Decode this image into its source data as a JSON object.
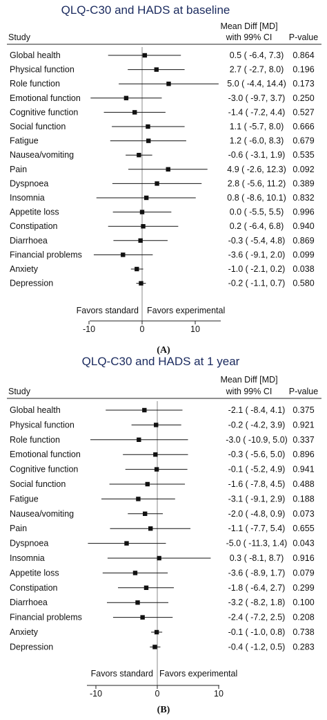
{
  "chart_data": [
    {
      "type": "forest",
      "title": "QLQ-C30 and HADS at baseline",
      "caption": "(A)",
      "header": {
        "study": "Study",
        "effect_line1": "Mean Diff [MD]",
        "effect_line2": "with 99% CI",
        "pvalue": "P-value"
      },
      "favors_left": "Favors standard",
      "favors_right": "Favors experimental",
      "xlim": [
        -10,
        10
      ],
      "xticks": [
        "-10",
        "0",
        "10"
      ],
      "rows": [
        {
          "study": "Global health",
          "md": 0.5,
          "lo": -6.4,
          "hi": 7.3,
          "ci_text": "0.5 ( -6.4,   7.3)",
          "p": "0.864"
        },
        {
          "study": "Physical function",
          "md": 2.7,
          "lo": -2.7,
          "hi": 8.0,
          "ci_text": "2.7 ( -2.7,   8.0)",
          "p": "0.196"
        },
        {
          "study": "Role function",
          "md": 5.0,
          "lo": -4.4,
          "hi": 14.4,
          "ci_text": "5.0 ( -4.4, 14.4)",
          "p": "0.173"
        },
        {
          "study": "Emotional function",
          "md": -3.0,
          "lo": -9.7,
          "hi": 3.7,
          "ci_text": "-3.0 ( -9.7,   3.7)",
          "p": "0.250"
        },
        {
          "study": "Cognitive function",
          "md": -1.4,
          "lo": -7.2,
          "hi": 4.4,
          "ci_text": "-1.4 ( -7.2,   4.4)",
          "p": "0.527"
        },
        {
          "study": "Social function",
          "md": 1.1,
          "lo": -5.7,
          "hi": 8.0,
          "ci_text": "1.1 ( -5.7,   8.0)",
          "p": "0.666"
        },
        {
          "study": "Fatigue",
          "md": 1.2,
          "lo": -6.0,
          "hi": 8.3,
          "ci_text": "1.2 ( -6.0,   8.3)",
          "p": "0.679"
        },
        {
          "study": "Nausea/vomiting",
          "md": -0.6,
          "lo": -3.1,
          "hi": 1.9,
          "ci_text": "-0.6 ( -3.1,   1.9)",
          "p": "0.535"
        },
        {
          "study": "Pain",
          "md": 4.9,
          "lo": -2.6,
          "hi": 12.3,
          "ci_text": "4.9 ( -2.6, 12.3)",
          "p": "0.092"
        },
        {
          "study": "Dyspnoea",
          "md": 2.8,
          "lo": -5.6,
          "hi": 11.2,
          "ci_text": "2.8 ( -5.6, 11.2)",
          "p": "0.389"
        },
        {
          "study": "Insomnia",
          "md": 0.8,
          "lo": -8.6,
          "hi": 10.1,
          "ci_text": "0.8 ( -8.6, 10.1)",
          "p": "0.832"
        },
        {
          "study": "Appetite loss",
          "md": 0.0,
          "lo": -5.5,
          "hi": 5.5,
          "ci_text": "0.0 ( -5.5,   5.5)",
          "p": "0.996"
        },
        {
          "study": "Constipation",
          "md": 0.2,
          "lo": -6.4,
          "hi": 6.8,
          "ci_text": "0.2 ( -6.4,   6.8)",
          "p": "0.940"
        },
        {
          "study": "Diarrhoea",
          "md": -0.3,
          "lo": -5.4,
          "hi": 4.8,
          "ci_text": "-0.3 ( -5.4,   4.8)",
          "p": "0.869"
        },
        {
          "study": "Financial problems",
          "md": -3.6,
          "lo": -9.1,
          "hi": 2.0,
          "ci_text": "-3.6 ( -9.1,   2.0)",
          "p": "0.099"
        },
        {
          "study": "Anxiety",
          "md": -1.0,
          "lo": -2.1,
          "hi": 0.2,
          "ci_text": "-1.0 ( -2.1,   0.2)",
          "p": "0.038"
        },
        {
          "study": "Depression",
          "md": -0.2,
          "lo": -1.1,
          "hi": 0.7,
          "ci_text": "-0.2 ( -1.1,   0.7)",
          "p": "0.580"
        }
      ]
    },
    {
      "type": "forest",
      "title": "QLQ-C30 and HADS at 1 year",
      "caption": "(B)",
      "header": {
        "study": "Study",
        "effect_line1": "Mean Diff [MD]",
        "effect_line2": "with 99% CI",
        "pvalue": "P-value"
      },
      "favors_left": "Favors standard",
      "favors_right": "Favors experimental",
      "xlim": [
        -10,
        10
      ],
      "xticks": [
        "-10",
        "0",
        "10"
      ],
      "rows": [
        {
          "study": "Global health",
          "md": -2.1,
          "lo": -8.4,
          "hi": 4.1,
          "ci_text": "-2.1 ( -8.4,   4.1)",
          "p": "0.375"
        },
        {
          "study": "Physical function",
          "md": -0.2,
          "lo": -4.2,
          "hi": 3.9,
          "ci_text": "-0.2 ( -4.2,   3.9)",
          "p": "0.921"
        },
        {
          "study": "Role function",
          "md": -3.0,
          "lo": -10.9,
          "hi": 5.0,
          "ci_text": "-3.0 ( -10.9,  5.0)",
          "p": "0.337"
        },
        {
          "study": "Emotional function",
          "md": -0.3,
          "lo": -5.6,
          "hi": 5.0,
          "ci_text": "-0.3 ( -5.6,   5.0)",
          "p": "0.896"
        },
        {
          "study": "Cognitive function",
          "md": -0.1,
          "lo": -5.2,
          "hi": 4.9,
          "ci_text": "-0.1 ( -5.2,   4.9)",
          "p": "0.941"
        },
        {
          "study": "Social function",
          "md": -1.6,
          "lo": -7.8,
          "hi": 4.5,
          "ci_text": "-1.6 ( -7.8,   4.5)",
          "p": "0.488"
        },
        {
          "study": "Fatigue",
          "md": -3.1,
          "lo": -9.1,
          "hi": 2.9,
          "ci_text": "-3.1 ( -9.1,   2.9)",
          "p": "0.188"
        },
        {
          "study": "Nausea/vomiting",
          "md": -2.0,
          "lo": -4.8,
          "hi": 0.9,
          "ci_text": "-2.0 ( -4.8,   0.9)",
          "p": "0.073"
        },
        {
          "study": "Pain",
          "md": -1.1,
          "lo": -7.7,
          "hi": 5.4,
          "ci_text": "-1.1 ( -7.7,   5.4)",
          "p": "0.655"
        },
        {
          "study": "Dyspnoea",
          "md": -5.0,
          "lo": -11.3,
          "hi": 1.4,
          "ci_text": "-5.0 ( -11.3,  1.4)",
          "p": "0.043"
        },
        {
          "study": "Insomnia",
          "md": 0.3,
          "lo": -8.1,
          "hi": 8.7,
          "ci_text": "0.3 ( -8.1,   8.7)",
          "p": "0.916"
        },
        {
          "study": "Appetite loss",
          "md": -3.6,
          "lo": -8.9,
          "hi": 1.7,
          "ci_text": "-3.6 ( -8.9,   1.7)",
          "p": "0.079"
        },
        {
          "study": "Constipation",
          "md": -1.8,
          "lo": -6.4,
          "hi": 2.7,
          "ci_text": "-1.8 ( -6.4,   2.7)",
          "p": "0.299"
        },
        {
          "study": "Diarrhoea",
          "md": -3.2,
          "lo": -8.2,
          "hi": 1.8,
          "ci_text": "-3.2 ( -8.2,   1.8)",
          "p": "0.100"
        },
        {
          "study": "Financial problems",
          "md": -2.4,
          "lo": -7.2,
          "hi": 2.5,
          "ci_text": "-2.4 ( -7.2,   2.5)",
          "p": "0.208"
        },
        {
          "study": "Anxiety",
          "md": -0.1,
          "lo": -1.0,
          "hi": 0.8,
          "ci_text": "-0.1 ( -1.0,   0.8)",
          "p": "0.738"
        },
        {
          "study": "Depression",
          "md": -0.4,
          "lo": -1.2,
          "hi": 0.5,
          "ci_text": "-0.4 ( -1.2,   0.5)",
          "p": "0.283"
        }
      ]
    }
  ]
}
